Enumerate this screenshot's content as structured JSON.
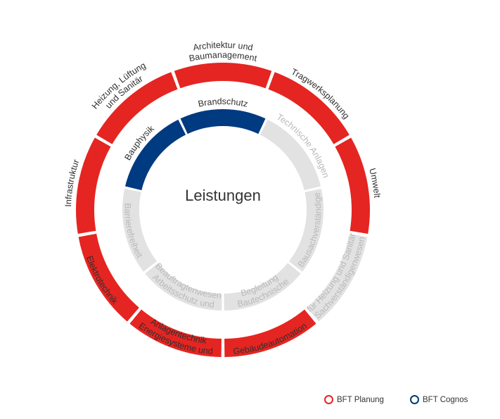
{
  "center_title": "Leistungen",
  "colors": {
    "planung": "#e52521",
    "cognos": "#003a80",
    "inactive": "#e2e2e3",
    "inactive_text": "#b9b9b9",
    "text": "#2f2f2f"
  },
  "outer_ring": [
    {
      "lines": [
        "Architektur und",
        "Baumanagement"
      ],
      "active": true
    },
    {
      "lines": [
        "Tragwerksplanung"
      ],
      "active": true
    },
    {
      "lines": [
        "Umwelt"
      ],
      "active": true
    },
    {
      "lines": [
        "Sachverständigenwesen",
        "für Heizung und Sanitär"
      ],
      "active": false
    },
    {
      "lines": [
        "Gebäudeautomation"
      ],
      "active": true
    },
    {
      "lines": [
        "Energiesysteme und",
        "Anlagentechnik"
      ],
      "active": true
    },
    {
      "lines": [
        "Elektrotechnik"
      ],
      "active": true
    },
    {
      "lines": [
        "Infrastruktur"
      ],
      "active": true
    },
    {
      "lines": [
        "Heizung, Lüftung",
        "und Sanitär"
      ],
      "active": true
    }
  ],
  "inner_ring": [
    {
      "lines": [
        "Brandschutz"
      ],
      "active": true
    },
    {
      "lines": [
        "Technische Anlagen"
      ],
      "active": false
    },
    {
      "lines": [
        "Bausachverständige"
      ],
      "active": false
    },
    {
      "lines": [
        "Bautechnische",
        "Begleitung"
      ],
      "active": false
    },
    {
      "lines": [
        "Arbeitsschutz und",
        "Beauftragtenwesen"
      ],
      "active": false
    },
    {
      "lines": [
        "Barrierefreiheit"
      ],
      "active": false
    },
    {
      "lines": [
        "Bauphysik"
      ],
      "active": true
    }
  ],
  "legend": [
    {
      "label": "BFT Planung",
      "color": "#e52521"
    },
    {
      "label": "BFT Cognos",
      "color": "#003a80"
    }
  ]
}
